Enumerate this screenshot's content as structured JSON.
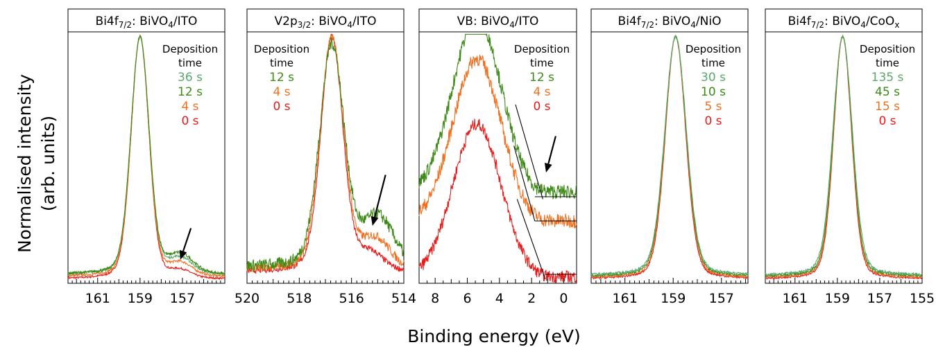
{
  "figure": {
    "ylabel_line1": "Normalised intensity",
    "ylabel_line2": "(arb. units)",
    "xlabel": "Binding energy (eV)"
  },
  "chart_data": [
    {
      "type": "line",
      "title": {
        "main": "Bi4f",
        "sub": "7/2",
        "rest": ": BiVO",
        "sub2": "4",
        "rest2": "/ITO"
      },
      "xlim": [
        162.4,
        155.0
      ],
      "ticks": [
        "161",
        "159",
        "157"
      ],
      "tick_values": [
        161,
        159,
        157
      ],
      "legend_header": [
        "Deposition",
        "time"
      ],
      "legend_align": "right",
      "legend": [
        {
          "label": "36 s",
          "color": "#5aa86e"
        },
        {
          "label": "12 s",
          "color": "#3d8a17"
        },
        {
          "label": "4 s",
          "color": "#f07020"
        },
        {
          "label": "0 s",
          "color": "#e81a1a"
        }
      ],
      "arrow": {
        "from": [
          156.6,
          0.21
        ],
        "to": [
          157.1,
          0.08
        ]
      },
      "series": [
        {
          "name": "0 s",
          "color": "#e81a1a",
          "shape": "gauss",
          "center": 159.0,
          "width": 0.42,
          "base": 0.0,
          "amp": 1.0,
          "noise": 0.004,
          "shoulder": {
            "x": 157.1,
            "w": 0.5,
            "a": 0.03
          }
        },
        {
          "name": "4 s",
          "color": "#f07020",
          "shape": "gauss",
          "center": 159.0,
          "width": 0.42,
          "base": 0.01,
          "amp": 1.0,
          "noise": 0.005,
          "shoulder": {
            "x": 157.1,
            "w": 0.55,
            "a": 0.05
          }
        },
        {
          "name": "36 s",
          "color": "#5aa86e",
          "shape": "gauss",
          "center": 159.0,
          "width": 0.43,
          "base": 0.02,
          "amp": 1.0,
          "noise": 0.005,
          "shoulder": {
            "x": 157.1,
            "w": 0.55,
            "a": 0.06
          }
        },
        {
          "name": "12 s",
          "color": "#3d8a17",
          "shape": "gauss",
          "center": 159.0,
          "width": 0.43,
          "base": 0.02,
          "amp": 1.0,
          "noise": 0.006,
          "shoulder": {
            "x": 157.1,
            "w": 0.6,
            "a": 0.075
          }
        }
      ]
    },
    {
      "type": "line",
      "title": {
        "main": "V2p",
        "sub": "3/2",
        "rest": ": BiVO",
        "sub2": "4",
        "rest2": "/ITO"
      },
      "xlim": [
        520.0,
        514.0
      ],
      "ticks": [
        "520",
        "518",
        "516",
        "514"
      ],
      "tick_values": [
        520,
        518,
        516,
        514
      ],
      "legend_header": [
        "Deposition",
        "time"
      ],
      "legend_align": "left",
      "legend": [
        {
          "label": "12 s",
          "color": "#3d8a17"
        },
        {
          "label": "4 s",
          "color": "#f07020"
        },
        {
          "label": "0 s",
          "color": "#e81a1a"
        }
      ],
      "arrow": {
        "from": [
          514.7,
          0.43
        ],
        "to": [
          515.2,
          0.22
        ]
      },
      "series": [
        {
          "name": "0 s",
          "color": "#e81a1a",
          "shape": "gauss",
          "center": 516.75,
          "width": 0.42,
          "base": 0.03,
          "amp": 1.0,
          "noise": 0.012,
          "shoulder": {
            "x": 515.3,
            "w": 0.5,
            "a": 0.07
          }
        },
        {
          "name": "4 s",
          "color": "#f07020",
          "shape": "gauss",
          "center": 516.75,
          "width": 0.44,
          "base": 0.04,
          "amp": 1.0,
          "noise": 0.018,
          "shoulder": {
            "x": 515.1,
            "w": 0.55,
            "a": 0.12
          }
        },
        {
          "name": "12 s",
          "color": "#3d8a17",
          "shape": "gauss",
          "center": 516.75,
          "width": 0.47,
          "base": 0.05,
          "amp": 0.97,
          "noise": 0.025,
          "shoulder": {
            "x": 515.0,
            "w": 0.6,
            "a": 0.2
          }
        }
      ]
    },
    {
      "type": "line",
      "title": {
        "main": "VB",
        "sub": "",
        "rest": ": BiVO",
        "sub2": "4",
        "rest2": "/ITO"
      },
      "xlim": [
        9.0,
        -0.8
      ],
      "ticks": [
        "8",
        "6",
        "4",
        "2",
        "0"
      ],
      "tick_values": [
        8,
        6,
        4,
        2,
        0
      ],
      "legend_header": [
        "Deposition",
        "time"
      ],
      "legend_align": "right",
      "legend": [
        {
          "label": "12 s",
          "color": "#3d8a17"
        },
        {
          "label": "4 s",
          "color": "#f07020"
        },
        {
          "label": "0 s",
          "color": "#e81a1a"
        }
      ],
      "arrow": {
        "from": [
          0.5,
          0.59
        ],
        "to": [
          1.1,
          0.44
        ]
      },
      "series": [
        {
          "name": "0 s",
          "color": "#e81a1a",
          "shape": "vb",
          "center": 5.4,
          "width": 1.5,
          "base": 0.01,
          "amp": 0.63,
          "edge": 1.25,
          "noise": 0.025
        },
        {
          "name": "4 s",
          "color": "#f07020",
          "shape": "vb",
          "center": 5.4,
          "width": 1.5,
          "base": 0.24,
          "amp": 0.67,
          "edge": 1.45,
          "noise": 0.03
        },
        {
          "name": "12 s",
          "color": "#3d8a17",
          "shape": "vb",
          "center": 5.4,
          "width": 1.5,
          "base": 0.36,
          "amp": 0.72,
          "edge": 1.6,
          "noise": 0.03
        }
      ],
      "guides": [
        {
          "from": [
            3.0,
            0.72
          ],
          "to": [
            1.3,
            0.33
          ]
        },
        {
          "from": [
            3.1,
            0.55
          ],
          "to": [
            1.8,
            0.24
          ]
        },
        {
          "from": [
            1.8,
            0.34
          ],
          "to": [
            -0.8,
            0.34
          ]
        },
        {
          "from": [
            1.8,
            0.24
          ],
          "to": [
            -0.8,
            0.24
          ]
        },
        {
          "from": [
            2.9,
            0.33
          ],
          "to": [
            1.15,
            0.0
          ]
        },
        {
          "from": [
            1.15,
            0.02
          ],
          "to": [
            -0.8,
            0.02
          ]
        }
      ]
    },
    {
      "type": "line",
      "title": {
        "main": "Bi4f",
        "sub": "7/2",
        "rest": ": BiVO",
        "sub2": "4",
        "rest2": "/NiO"
      },
      "xlim": [
        162.4,
        155.9
      ],
      "ticks": [
        "161",
        "159",
        "157"
      ],
      "tick_values": [
        161,
        159,
        157
      ],
      "legend_header": [
        "Deposition",
        "time"
      ],
      "legend_align": "right",
      "legend": [
        {
          "label": "30 s",
          "color": "#5aa86e"
        },
        {
          "label": "10 s",
          "color": "#3d8a17"
        },
        {
          "label": "5 s",
          "color": "#f07020"
        },
        {
          "label": "0 s",
          "color": "#e81a1a"
        }
      ],
      "series": [
        {
          "name": "0 s",
          "color": "#e81a1a",
          "shape": "gauss",
          "center": 158.9,
          "width": 0.42,
          "base": 0.0,
          "amp": 1.0,
          "noise": 0.004
        },
        {
          "name": "5 s",
          "color": "#f07020",
          "shape": "gauss",
          "center": 158.9,
          "width": 0.43,
          "base": 0.005,
          "amp": 1.0,
          "noise": 0.004
        },
        {
          "name": "10 s",
          "color": "#3d8a17",
          "shape": "gauss",
          "center": 158.9,
          "width": 0.44,
          "base": 0.01,
          "amp": 1.0,
          "noise": 0.005
        },
        {
          "name": "30 s",
          "color": "#5aa86e",
          "shape": "gauss",
          "center": 158.9,
          "width": 0.45,
          "base": 0.015,
          "amp": 1.0,
          "noise": 0.005
        }
      ]
    },
    {
      "type": "line",
      "title": {
        "main": "Bi4f",
        "sub": "7/2",
        "rest": ": BiVO",
        "sub2": "4",
        "rest2": "/CoO",
        "sub3": "x"
      },
      "xlim": [
        162.4,
        155.0
      ],
      "ticks": [
        "161",
        "159",
        "157",
        "155"
      ],
      "tick_values": [
        161,
        159,
        157,
        155
      ],
      "legend_header": [
        "Deposition",
        "time"
      ],
      "legend_align": "right",
      "legend": [
        {
          "label": "135 s",
          "color": "#5aa86e"
        },
        {
          "label": "45 s",
          "color": "#3d8a17"
        },
        {
          "label": "15 s",
          "color": "#f07020"
        },
        {
          "label": "0 s",
          "color": "#e81a1a"
        }
      ],
      "series": [
        {
          "name": "0 s",
          "color": "#e81a1a",
          "shape": "gauss",
          "center": 158.75,
          "width": 0.42,
          "base": 0.0,
          "amp": 1.0,
          "noise": 0.004
        },
        {
          "name": "15 s",
          "color": "#f07020",
          "shape": "gauss",
          "center": 158.75,
          "width": 0.43,
          "base": 0.005,
          "amp": 1.0,
          "noise": 0.004
        },
        {
          "name": "45 s",
          "color": "#3d8a17",
          "shape": "gauss",
          "center": 158.75,
          "width": 0.44,
          "base": 0.01,
          "amp": 1.0,
          "noise": 0.005
        },
        {
          "name": "135 s",
          "color": "#5aa86e",
          "shape": "gauss",
          "center": 158.75,
          "width": 0.46,
          "base": 0.015,
          "amp": 1.0,
          "noise": 0.005
        }
      ]
    }
  ]
}
